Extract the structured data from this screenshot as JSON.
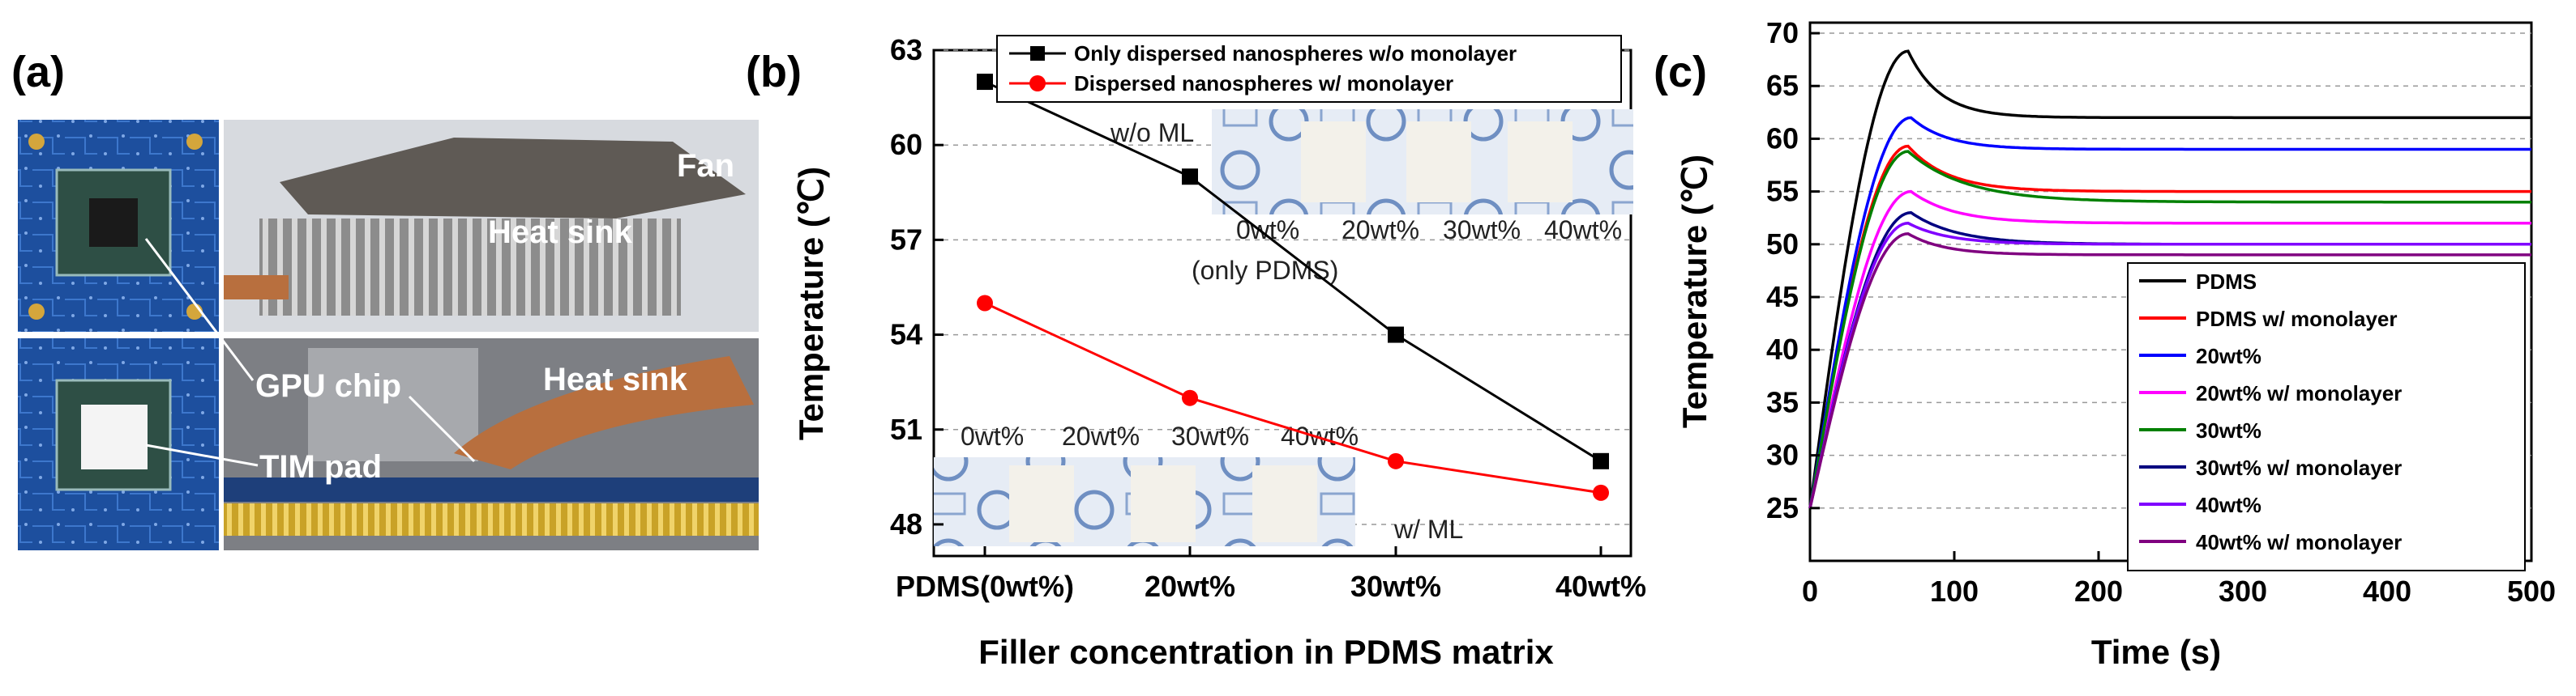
{
  "panels": {
    "a": {
      "letter": "(a)",
      "labels": {
        "fan": "Fan",
        "heat_sink_top": "Heat sink",
        "gpu_chip": "GPU chip",
        "heat_sink_bottom": "Heat sink",
        "tim_pad": "TIM pad"
      }
    },
    "b": {
      "letter": "(b)"
    },
    "c": {
      "letter": "(c)"
    }
  },
  "chart_data": [
    {
      "id": "b",
      "type": "line",
      "categories": [
        "PDMS(0wt%)",
        "20wt%",
        "30wt%",
        "40wt%"
      ],
      "series": [
        {
          "name": "Only dispersed nanospheres w/o monolayer",
          "color": "#000000",
          "marker": "square",
          "values": [
            62,
            59,
            54,
            50
          ]
        },
        {
          "name": "Dispersed nanospheres w/ monolayer",
          "color": "#ff0000",
          "marker": "circle",
          "values": [
            55,
            52,
            50,
            49
          ]
        }
      ],
      "title": "",
      "xlabel": "Filler concentration in PDMS matrix",
      "ylabel": "Temperature (℃)",
      "ylim": [
        47,
        63
      ],
      "yticks": [
        48,
        51,
        54,
        57,
        60,
        63
      ],
      "grid": "horizontal-dashed",
      "legend": "top",
      "insets": {
        "top": {
          "tag": "w/o ML",
          "labels": [
            "0wt%",
            "20wt%",
            "30wt%",
            "40wt%"
          ],
          "note": "(only PDMS)"
        },
        "bottom": {
          "tag": "w/ ML",
          "labels": [
            "0wt%",
            "20wt%",
            "30wt%",
            "40wt%"
          ]
        }
      }
    },
    {
      "id": "c",
      "type": "line",
      "xlabel": "Time (s)",
      "ylabel": "Temperature (℃)",
      "xlim": [
        0,
        500
      ],
      "ylim": [
        20,
        71
      ],
      "xticks": [
        0,
        100,
        200,
        300,
        400,
        500
      ],
      "yticks": [
        25,
        30,
        35,
        40,
        45,
        50,
        55,
        60,
        65,
        70
      ],
      "grid": "horizontal-dashed",
      "legend": "bottom-right",
      "series": [
        {
          "name": "PDMS",
          "color": "#000000",
          "start": 25,
          "peak_t": 68,
          "peak": 68.3,
          "steady": 62,
          "decay": 22
        },
        {
          "name": "PDMS w/ monolayer",
          "color": "#ff0000",
          "start": 25,
          "peak_t": 68,
          "peak": 59.3,
          "steady": 55,
          "decay": 28
        },
        {
          "name": "20wt%",
          "color": "#0000ff",
          "start": 25,
          "peak_t": 70,
          "peak": 62,
          "steady": 59,
          "decay": 25
        },
        {
          "name": "20wt% w/ monolayer",
          "color": "#ff00ff",
          "start": 25,
          "peak_t": 70,
          "peak": 55,
          "steady": 52,
          "decay": 30
        },
        {
          "name": "30wt%",
          "color": "#008000",
          "start": 25,
          "peak_t": 68,
          "peak": 58.8,
          "steady": 54,
          "decay": 40
        },
        {
          "name": "30wt% w/ monolayer",
          "color": "#000080",
          "start": 25,
          "peak_t": 70,
          "peak": 53,
          "steady": 50,
          "decay": 32
        },
        {
          "name": "40wt%",
          "color": "#8000ff",
          "start": 25,
          "peak_t": 68,
          "peak": 52,
          "steady": 50,
          "decay": 28
        },
        {
          "name": "40wt% w/ monolayer",
          "color": "#800080",
          "start": 25,
          "peak_t": 68,
          "peak": 51,
          "steady": 49,
          "decay": 25
        }
      ]
    }
  ]
}
